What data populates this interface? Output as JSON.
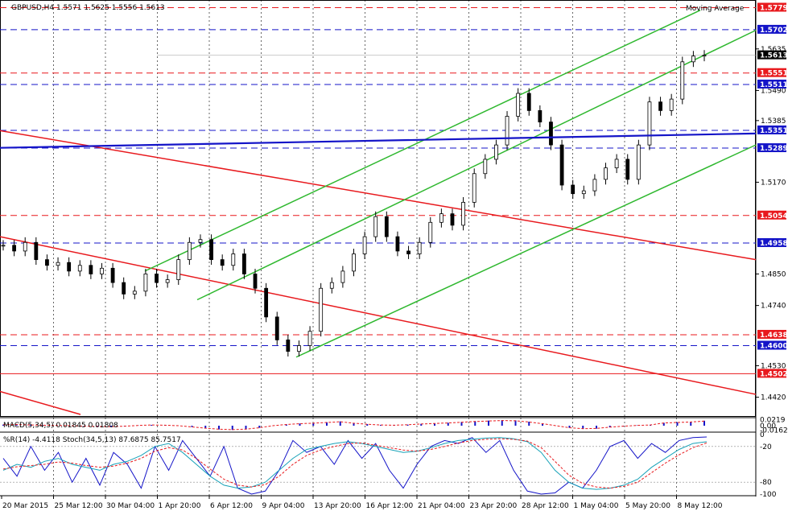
{
  "chart_data": {
    "type": "candlestick",
    "symbol_header": "GBPUSD,H4  1.5571 1.5625 1.5556 1.5613",
    "indicator_label": "Moving Average",
    "price_axis": {
      "range": [
        1.436,
        1.58
      ],
      "ticks": [
        "1.5635",
        "1.5490",
        "1.5385",
        "1.5170",
        "1.4850",
        "1.4740",
        "1.4530",
        "1.4420"
      ]
    },
    "current_price": "1.5613",
    "levels": [
      {
        "label": "1.5779",
        "value": 1.5779,
        "color": "#e8191d",
        "style": "dashed"
      },
      {
        "label": "1.5702",
        "value": 1.5702,
        "color": "#1414c8",
        "style": "dashed"
      },
      {
        "label": "1.5551",
        "value": 1.5551,
        "color": "#e8191d",
        "style": "dashed"
      },
      {
        "label": "1.5511",
        "value": 1.5511,
        "color": "#1414c8",
        "style": "dashed"
      },
      {
        "label": "1.5351",
        "value": 1.5351,
        "color": "#1414c8",
        "style": "dashed"
      },
      {
        "label": "1.5289",
        "value": 1.5289,
        "color": "#1414c8",
        "style": "dashed"
      },
      {
        "label": "1.5054",
        "value": 1.5054,
        "color": "#e8191d",
        "style": "dashed"
      },
      {
        "label": "1.4958",
        "value": 1.4958,
        "color": "#1414c8",
        "style": "dashed"
      },
      {
        "label": "1.4638",
        "value": 1.4638,
        "color": "#e8191d",
        "style": "dashed"
      },
      {
        "label": "1.4600",
        "value": 1.46,
        "color": "#1414c8",
        "style": "dashed"
      },
      {
        "label": "1.4502",
        "value": 1.4502,
        "color": "#e8191d",
        "style": "solid"
      }
    ],
    "x_labels": [
      "20 Mar 2015",
      "25 Mar 12:00",
      "30 Mar 04:00",
      "1 Apr 20:00",
      "6 Apr 12:00",
      "9 Apr 04:00",
      "13 Apr 20:00",
      "16 Apr 12:00",
      "21 Apr 04:00",
      "23 Apr 20:00",
      "28 Apr 12:00",
      "1 May 04:00",
      "5 May 20:00",
      "8 May 12:00"
    ],
    "close_path": [
      1.495,
      1.493,
      1.496,
      1.49,
      1.488,
      1.489,
      1.486,
      1.488,
      1.485,
      1.487,
      1.482,
      1.478,
      1.479,
      1.485,
      1.482,
      1.483,
      1.49,
      1.496,
      1.497,
      1.49,
      1.488,
      1.492,
      1.485,
      1.48,
      1.47,
      1.462,
      1.458,
      1.46,
      1.465,
      1.48,
      1.482,
      1.486,
      1.492,
      1.498,
      1.505,
      1.498,
      1.493,
      1.492,
      1.496,
      1.503,
      1.506,
      1.502,
      1.51,
      1.52,
      1.525,
      1.53,
      1.54,
      1.548,
      1.542,
      1.538,
      1.53,
      1.516,
      1.513,
      1.514,
      1.518,
      1.522,
      1.525,
      1.518,
      1.53,
      1.545,
      1.542,
      1.546,
      1.559,
      1.561,
      1.5613
    ],
    "macd": {
      "label": "MACD(5,34,5) 0.01845 0.01808",
      "ticks": [
        "0.0219",
        "0.00",
        "-0.0162"
      ],
      "range": [
        -0.018,
        0.024
      ],
      "histogram": [
        0.004,
        0.005,
        0.003,
        0.002,
        0.001,
        0.0,
        -0.002,
        -0.003,
        -0.004,
        -0.002,
        0.001,
        0.003,
        0.002,
        0.0,
        -0.005,
        -0.01,
        -0.014,
        -0.016,
        -0.014,
        -0.008,
        0.0,
        0.005,
        0.008,
        0.01,
        0.013,
        0.016,
        0.01,
        0.006,
        0.003,
        0.002,
        0.004,
        0.007,
        0.009,
        0.011,
        0.014,
        0.017,
        0.019,
        0.021,
        0.02,
        0.015,
        0.008,
        0.0,
        -0.008,
        -0.012,
        -0.011,
        -0.006,
        -0.002,
        0.001,
        0.003,
        0.011,
        0.013,
        0.015,
        0.0185
      ],
      "signal_color": "#e8191d",
      "bar_color": "#1414c8"
    },
    "oscillators": {
      "label": "%R(14) -4.4118  Stoch(34,5,13) 87.6875 85.7517",
      "ticks": [
        "0",
        "-20",
        "-80",
        "-100"
      ],
      "wpr": [
        -40,
        -70,
        -20,
        -60,
        -30,
        -80,
        -40,
        -85,
        -30,
        -50,
        -90,
        -20,
        -60,
        -10,
        -40,
        -70,
        -20,
        -90,
        -100,
        -95,
        -60,
        -10,
        -30,
        -20,
        -50,
        -10,
        -40,
        -15,
        -60,
        -90,
        -50,
        -20,
        -10,
        -15,
        -5,
        -30,
        -10,
        -60,
        -95,
        -100,
        -98,
        -80,
        -90,
        -60,
        -20,
        -10,
        -40,
        -15,
        -30,
        -10,
        -5,
        -4
      ],
      "stoch_main": [
        40,
        50,
        45,
        55,
        60,
        50,
        45,
        40,
        50,
        55,
        65,
        80,
        85,
        70,
        50,
        30,
        15,
        10,
        12,
        20,
        40,
        60,
        75,
        80,
        85,
        88,
        85,
        80,
        75,
        70,
        72,
        78,
        85,
        90,
        92,
        94,
        95,
        93,
        88,
        70,
        40,
        20,
        10,
        8,
        10,
        15,
        25,
        45,
        60,
        75,
        85,
        88
      ],
      "stoch_signal": [
        42,
        46,
        48,
        50,
        54,
        52,
        48,
        45,
        47,
        52,
        60,
        72,
        78,
        74,
        60,
        42,
        25,
        15,
        12,
        16,
        30,
        50,
        65,
        74,
        80,
        85,
        86,
        82,
        78,
        74,
        72,
        75,
        80,
        86,
        90,
        92,
        93,
        92,
        89,
        78,
        55,
        32,
        18,
        12,
        10,
        13,
        20,
        36,
        52,
        66,
        78,
        86
      ],
      "line_colors": {
        "wpr": "#1414c8",
        "stoch_main": "#17a2b8",
        "stoch_signal": "#e8191d"
      }
    }
  }
}
